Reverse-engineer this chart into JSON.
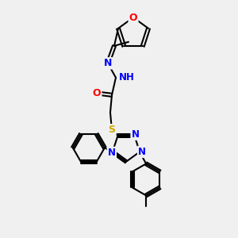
{
  "bg_color": "#f0f0f0",
  "atom_colors": {
    "C": "#000000",
    "N": "#0000ff",
    "O": "#ff0000",
    "S": "#ccaa00",
    "H": "#008080"
  },
  "bond_color": "#000000",
  "figsize": [
    3.0,
    3.0
  ],
  "dpi": 100
}
